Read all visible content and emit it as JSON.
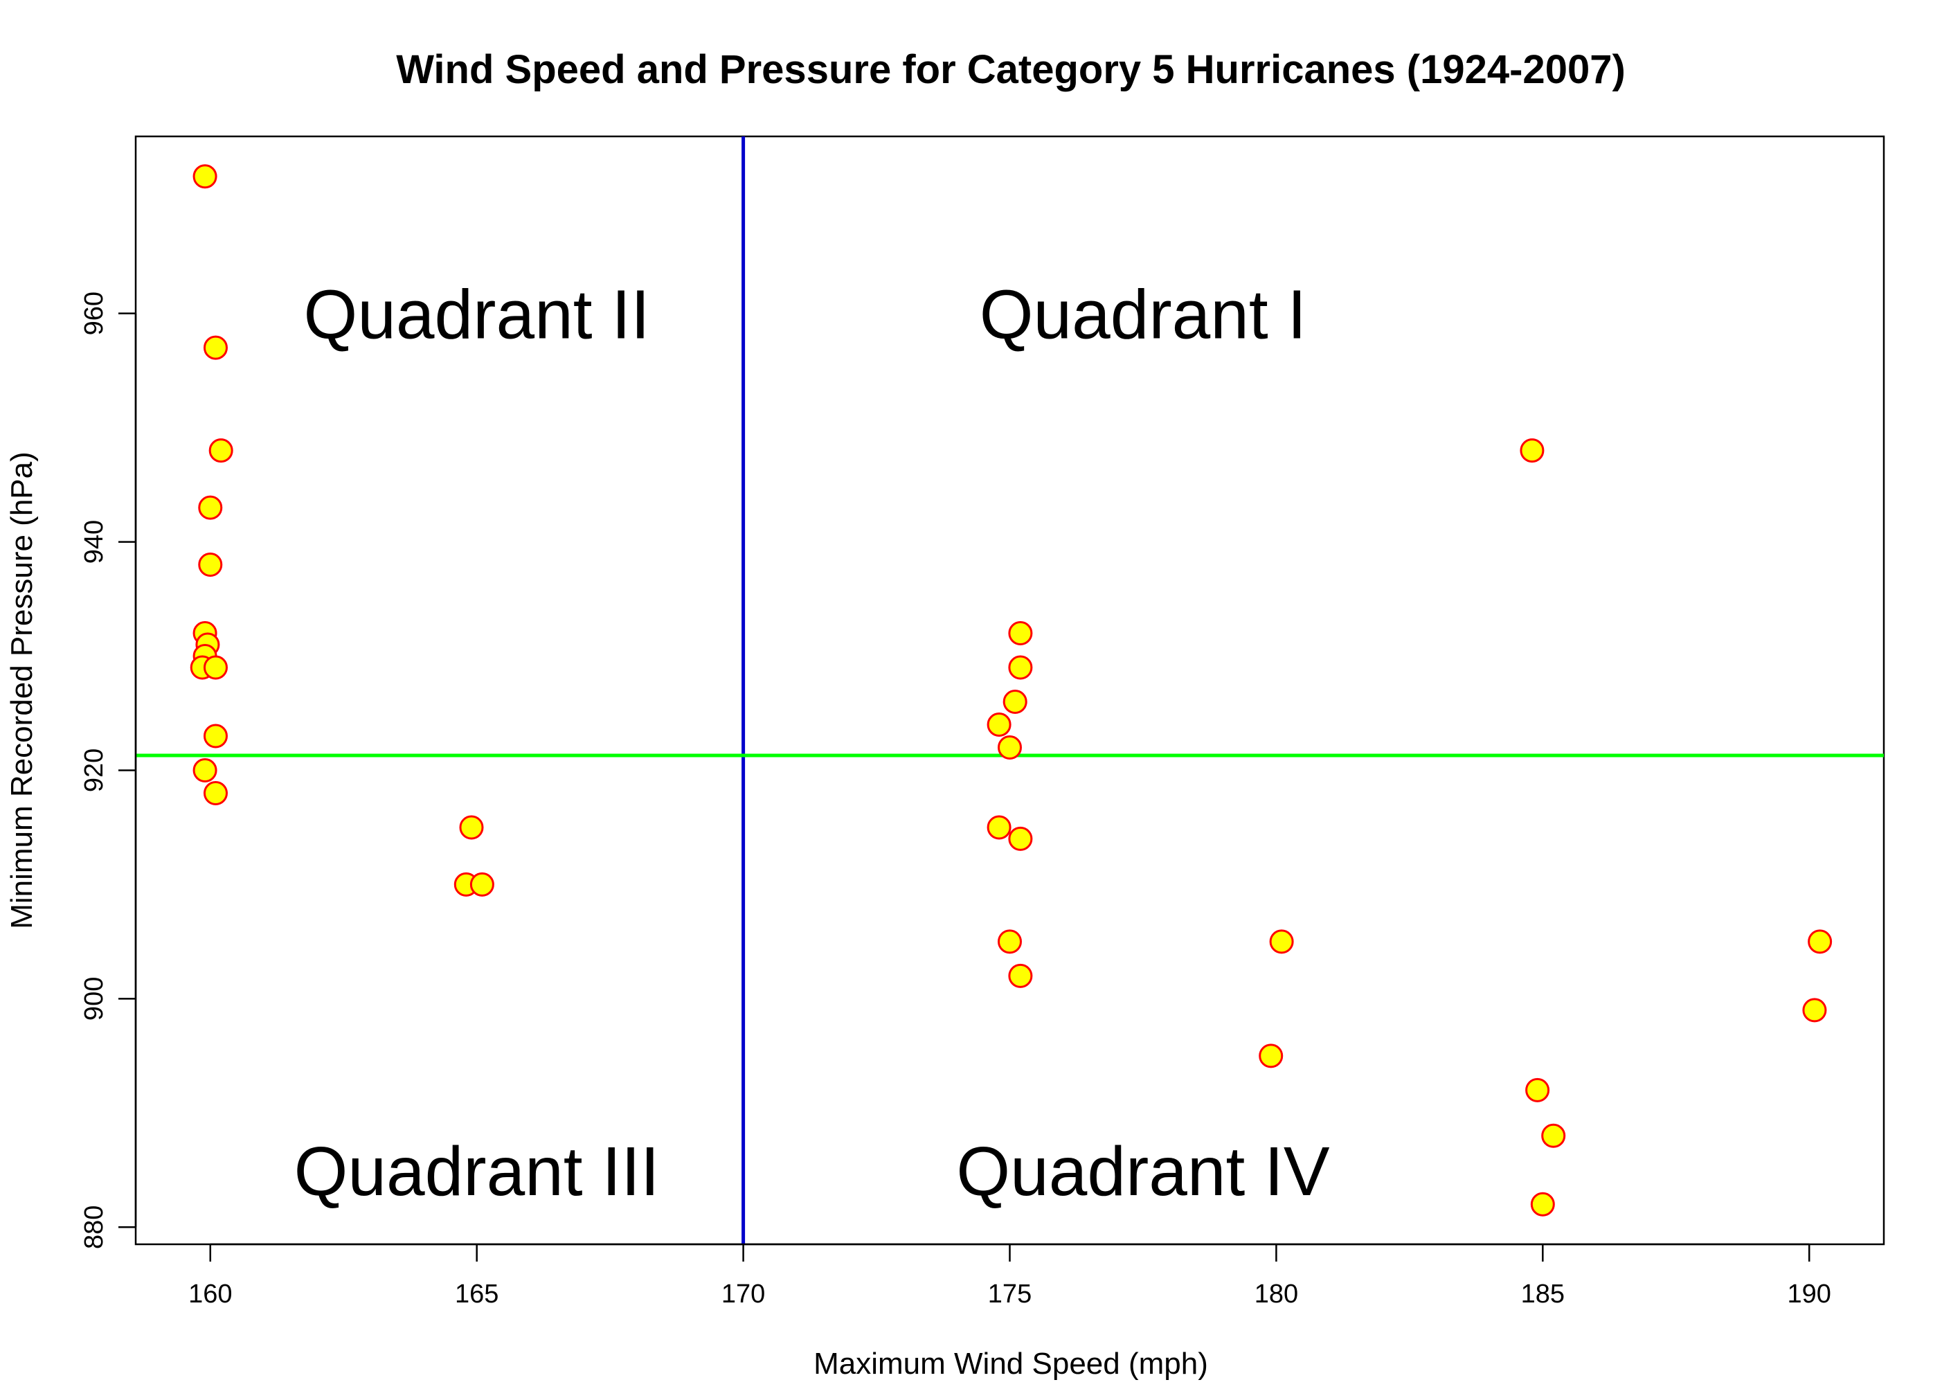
{
  "chart_data": {
    "type": "scatter",
    "title": "Wind Speed and Pressure for Category 5 Hurricanes (1924-2007)",
    "xlabel": "Maximum Wind Speed (mph)",
    "ylabel": "Minimum Recorded Pressure (hPa)",
    "xlim": [
      158.6,
      191.4
    ],
    "ylim": [
      878.5,
      975.5
    ],
    "x_ticks": [
      160,
      165,
      170,
      175,
      180,
      185,
      190
    ],
    "y_ticks": [
      880,
      900,
      920,
      940,
      960
    ],
    "grid": false,
    "point_fill": "#ffff00",
    "point_stroke": "#ff0000",
    "reference_lines": [
      {
        "orientation": "vertical",
        "value": 170,
        "color": "#0000cc"
      },
      {
        "orientation": "horizontal",
        "value": 921.3,
        "color": "#00ff00"
      }
    ],
    "quadrant_labels": [
      {
        "text": "Quadrant II",
        "x": 165,
        "y": 960
      },
      {
        "text": "Quadrant I",
        "x": 177.5,
        "y": 960
      },
      {
        "text": "Quadrant III",
        "x": 165,
        "y": 885
      },
      {
        "text": "Quadrant IV",
        "x": 177.5,
        "y": 885
      }
    ],
    "points": [
      {
        "x": 159.9,
        "y": 972
      },
      {
        "x": 160.1,
        "y": 957
      },
      {
        "x": 160.2,
        "y": 948
      },
      {
        "x": 160.0,
        "y": 943
      },
      {
        "x": 160.0,
        "y": 938
      },
      {
        "x": 159.9,
        "y": 932
      },
      {
        "x": 159.95,
        "y": 931
      },
      {
        "x": 159.9,
        "y": 930
      },
      {
        "x": 159.85,
        "y": 929
      },
      {
        "x": 160.1,
        "y": 929
      },
      {
        "x": 160.1,
        "y": 923
      },
      {
        "x": 159.9,
        "y": 920
      },
      {
        "x": 160.1,
        "y": 918
      },
      {
        "x": 164.9,
        "y": 915
      },
      {
        "x": 164.8,
        "y": 910
      },
      {
        "x": 165.1,
        "y": 910
      },
      {
        "x": 175.2,
        "y": 932
      },
      {
        "x": 175.2,
        "y": 929
      },
      {
        "x": 175.1,
        "y": 926
      },
      {
        "x": 174.8,
        "y": 924
      },
      {
        "x": 175.0,
        "y": 922
      },
      {
        "x": 174.8,
        "y": 915
      },
      {
        "x": 175.2,
        "y": 914
      },
      {
        "x": 175.0,
        "y": 905
      },
      {
        "x": 175.2,
        "y": 902
      },
      {
        "x": 180.1,
        "y": 905
      },
      {
        "x": 179.9,
        "y": 895
      },
      {
        "x": 184.8,
        "y": 948
      },
      {
        "x": 184.9,
        "y": 892
      },
      {
        "x": 185.2,
        "y": 888
      },
      {
        "x": 185.0,
        "y": 882
      },
      {
        "x": 190.2,
        "y": 905
      },
      {
        "x": 190.1,
        "y": 899
      }
    ]
  }
}
